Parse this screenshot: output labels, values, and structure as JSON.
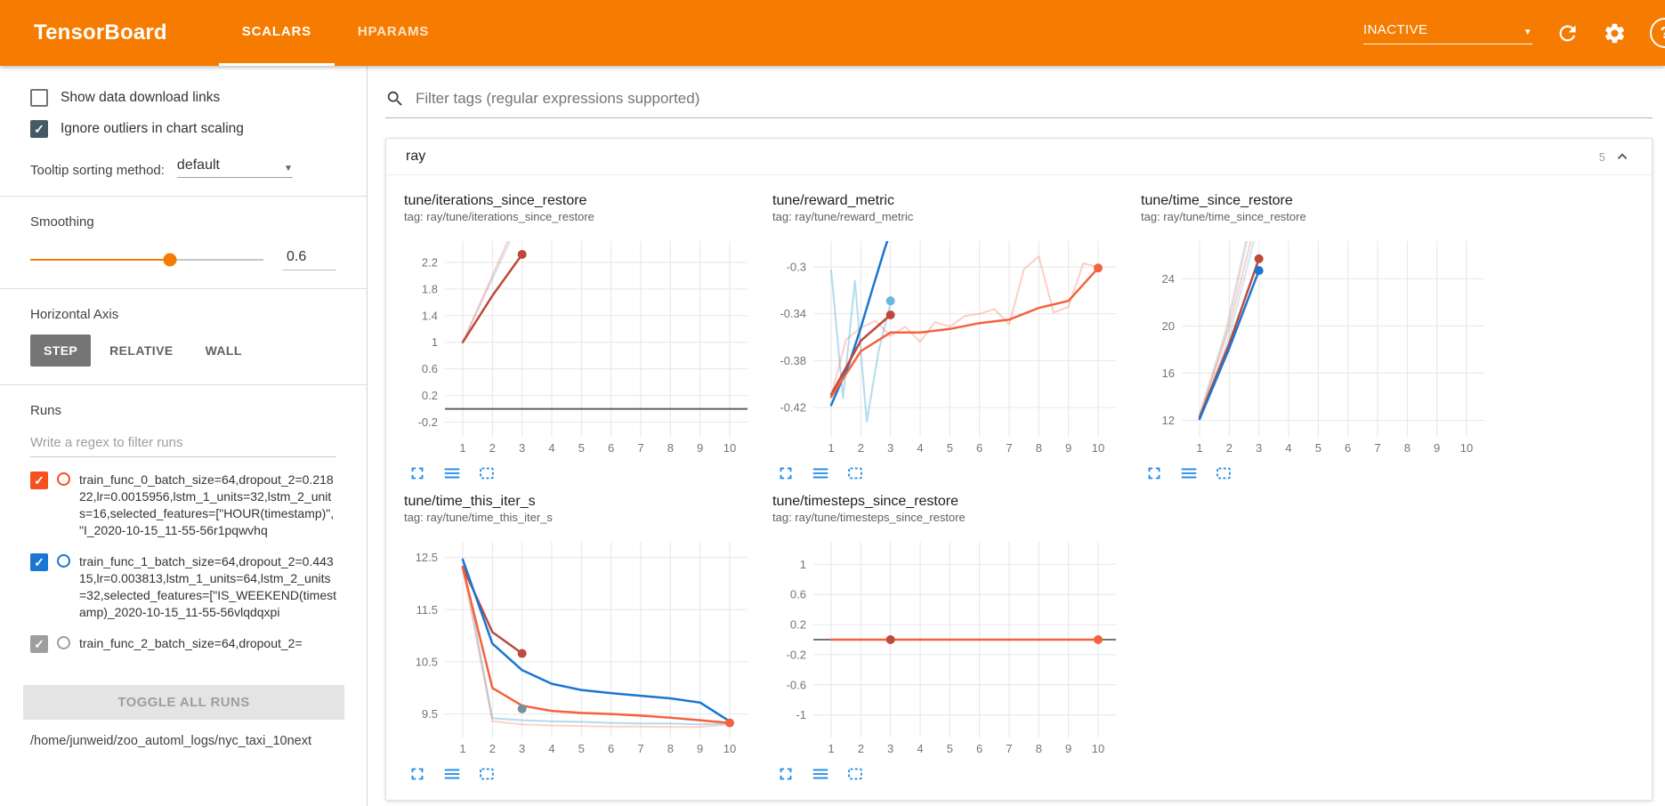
{
  "colors": {
    "header_bg": "#f57c00",
    "accent": "#f57c00",
    "icon_blue": "#1e88e5",
    "run0": "#f4511e",
    "run1": "#1976d2",
    "checkbox_checked": "#455a64"
  },
  "icons": {
    "search": "magnifier",
    "reload": "circular-arrow",
    "settings": "gear",
    "help": "question-mark-in-circle",
    "collapse": "chevron-up",
    "expand_chart": "fullscreen-corners",
    "run_data": "three-horizontal-lines",
    "fit_domain": "dashed-box"
  },
  "header": {
    "logo": "TensorBoard",
    "tabs": [
      {
        "label": "SCALARS",
        "active": true
      },
      {
        "label": "HPARAMS",
        "active": false
      }
    ],
    "status_dropdown": "INACTIVE"
  },
  "sidebar": {
    "show_data_download_links": {
      "label": "Show data download links",
      "checked": false
    },
    "ignore_outliers": {
      "label": "Ignore outliers in chart scaling",
      "checked": true
    },
    "tooltip_sorting": {
      "label": "Tooltip sorting method:",
      "value": "default"
    },
    "smoothing": {
      "label": "Smoothing",
      "value": "0.6"
    },
    "horizontal_axis": {
      "label": "Horizontal Axis",
      "options": [
        "STEP",
        "RELATIVE",
        "WALL"
      ],
      "selected": "STEP"
    },
    "runs": {
      "label": "Runs",
      "filter_placeholder": "Write a regex to filter runs",
      "items": [
        {
          "name": "train_func_0_batch_size=64,dropout_2=0.21822,lr=0.0015956,lstm_1_units=32,lstm_2_units=16,selected_features=[\"HOUR(timestamp)\", \"I_2020-10-15_11-55-56r1pqwvhq",
          "checked": true,
          "color": "#f4511e"
        },
        {
          "name": "train_func_1_batch_size=64,dropout_2=0.44315,lr=0.003813,lstm_1_units=64,lstm_2_units=32,selected_features=[\"IS_WEEKEND(timestamp)_2020-10-15_11-55-56vlqdqxpi",
          "checked": true,
          "color": "#1976d2"
        },
        {
          "name": "train_func_2_batch_size=64,dropout_2=",
          "checked": true,
          "color": "#9e9e9e"
        }
      ],
      "toggle_all_label": "TOGGLE ALL RUNS",
      "log_dir": "/home/junweid/zoo_automl_logs/nyc_taxi_10next"
    }
  },
  "main": {
    "filter_placeholder": "Filter tags (regular expressions supported)",
    "category": {
      "name": "ray",
      "count": "5"
    }
  },
  "chart_data": [
    {
      "type": "line",
      "title": "tune/iterations_since_restore",
      "tag": "tag: ray/tune/iterations_since_restore",
      "xlim": [
        0.4,
        10.6
      ],
      "ylim": [
        -0.42,
        2.52
      ],
      "xticks": [
        1,
        2,
        3,
        4,
        5,
        6,
        7,
        8,
        9,
        10
      ],
      "yticks": [
        -0.2,
        0.2,
        0.6,
        1,
        1.4,
        1.8,
        2.2
      ],
      "series": [
        {
          "name": "train_func_1 (raw)",
          "color": "#1976d2",
          "opacity": 0.18,
          "width": 2,
          "points": [
            [
              1,
              1
            ],
            [
              2,
              1.95
            ],
            [
              3,
              2.9
            ]
          ]
        },
        {
          "name": "train_func_0 (raw)",
          "color": "#f4623c",
          "opacity": 0.3,
          "width": 2,
          "points": [
            [
              1,
              1
            ],
            [
              2,
              2
            ],
            [
              3,
              3
            ]
          ]
        },
        {
          "name": "train_func_0 (smoothed)",
          "color": "#bd4a3a",
          "opacity": 1,
          "width": 2.5,
          "points": [
            [
              1,
              1
            ],
            [
              2,
              1.7
            ],
            [
              3,
              2.32
            ]
          ],
          "end_dot": true
        },
        {
          "name": "flat run at 0",
          "color": "#616161",
          "opacity": 1,
          "width": 2,
          "points": [
            [
              0.4,
              0
            ],
            [
              10.6,
              0
            ]
          ]
        }
      ]
    },
    {
      "type": "line",
      "title": "tune/reward_metric",
      "tag": "tag: ray/tune/reward_metric",
      "xlim": [
        0.4,
        10.6
      ],
      "ylim": [
        -0.445,
        -0.278
      ],
      "xticks": [
        1,
        2,
        3,
        4,
        5,
        6,
        7,
        8,
        9,
        10
      ],
      "yticks": [
        -0.42,
        -0.38,
        -0.34,
        -0.3
      ],
      "series": [
        {
          "name": "train_func_1 (raw)",
          "color": "#6ab7e0",
          "opacity": 0.5,
          "width": 2,
          "points": [
            [
              1,
              -0.303
            ],
            [
              1.4,
              -0.412
            ],
            [
              1.8,
              -0.312
            ],
            [
              2.2,
              -0.432
            ],
            [
              2.6,
              -0.372
            ],
            [
              3,
              -0.331
            ]
          ]
        },
        {
          "name": "orange run (raw)",
          "color": "#f4623c",
          "opacity": 0.3,
          "width": 2,
          "points": [
            [
              1,
              -0.41
            ],
            [
              1.5,
              -0.362
            ],
            [
              2,
              -0.352
            ],
            [
              2.5,
              -0.346
            ],
            [
              3,
              -0.359
            ],
            [
              3.5,
              -0.351
            ],
            [
              4,
              -0.364
            ],
            [
              4.5,
              -0.347
            ],
            [
              5,
              -0.351
            ],
            [
              5.5,
              -0.342
            ],
            [
              6,
              -0.34
            ],
            [
              6.5,
              -0.336
            ],
            [
              7,
              -0.349
            ],
            [
              7.5,
              -0.302
            ],
            [
              8,
              -0.291
            ],
            [
              8.5,
              -0.339
            ],
            [
              9,
              -0.334
            ],
            [
              9.5,
              -0.297
            ],
            [
              10,
              -0.3
            ]
          ]
        },
        {
          "name": "train_func_1 (smoothed)",
          "color": "#1976d2",
          "opacity": 1,
          "width": 2.5,
          "points": [
            [
              1,
              -0.418
            ],
            [
              1.6,
              -0.383
            ],
            [
              2,
              -0.352
            ],
            [
              2.4,
              -0.318
            ],
            [
              2.8,
              -0.285
            ],
            [
              3,
              -0.27
            ]
          ]
        },
        {
          "name": "train_func_0 (smoothed)",
          "color": "#bd4a3a",
          "opacity": 1,
          "width": 2.5,
          "points": [
            [
              1,
              -0.409
            ],
            [
              2,
              -0.363
            ],
            [
              3,
              -0.341
            ]
          ],
          "end_dot": true
        },
        {
          "name": "orange run (smoothed)",
          "color": "#f4623c",
          "opacity": 1,
          "width": 2.5,
          "points": [
            [
              1,
              -0.411
            ],
            [
              2,
              -0.372
            ],
            [
              3,
              -0.356
            ],
            [
              4,
              -0.356
            ],
            [
              5,
              -0.353
            ],
            [
              6,
              -0.348
            ],
            [
              7,
              -0.345
            ],
            [
              8,
              -0.335
            ],
            [
              9,
              -0.329
            ],
            [
              10,
              -0.301
            ]
          ],
          "end_dot": true
        }
      ],
      "dots": [
        {
          "x": 3,
          "y": -0.329,
          "color": "#6ab7e0"
        }
      ]
    },
    {
      "type": "line",
      "title": "tune/time_since_restore",
      "tag": "tag: ray/tune/time_since_restore",
      "xlim": [
        0.4,
        10.6
      ],
      "ylim": [
        10.6,
        27.2
      ],
      "xticks": [
        1,
        2,
        3,
        4,
        5,
        6,
        7,
        8,
        9,
        10
      ],
      "yticks": [
        12,
        16,
        20,
        24
      ],
      "series": [
        {
          "name": "grey run (raw)",
          "color": "#9e9e9e",
          "opacity": 0.35,
          "width": 3,
          "points": [
            [
              1,
              12.4
            ],
            [
              1.9,
              19.6
            ],
            [
              2.6,
              27.4
            ]
          ]
        },
        {
          "name": "orange run (raw)",
          "color": "#f4623c",
          "opacity": 0.3,
          "width": 2,
          "points": [
            [
              1,
              12.3
            ],
            [
              2,
              19.9
            ],
            [
              2.75,
              27.4
            ]
          ]
        },
        {
          "name": "blue run (raw)",
          "color": "#1976d2",
          "opacity": 0.2,
          "width": 2,
          "points": [
            [
              1,
              12.1
            ],
            [
              2,
              19.1
            ],
            [
              2.85,
              27.4
            ]
          ]
        },
        {
          "name": "train_func_0 (smoothed)",
          "color": "#bd4a3a",
          "opacity": 1,
          "width": 2.5,
          "points": [
            [
              1,
              12.25
            ],
            [
              2,
              18.5
            ],
            [
              3,
              25.7
            ]
          ],
          "end_dot": true
        },
        {
          "name": "train_func_1 (smoothed)",
          "color": "#1976d2",
          "opacity": 1,
          "width": 2.5,
          "points": [
            [
              1,
              12.1
            ],
            [
              2,
              18.1
            ],
            [
              3,
              24.7
            ]
          ],
          "end_dot": true
        }
      ]
    },
    {
      "type": "line",
      "title": "tune/time_this_iter_s",
      "tag": "tag: ray/tune/time_this_iter_s",
      "xlim": [
        0.4,
        10.6
      ],
      "ylim": [
        9.05,
        12.8
      ],
      "xticks": [
        1,
        2,
        3,
        4,
        5,
        6,
        7,
        8,
        9,
        10
      ],
      "yticks": [
        9.5,
        10.5,
        11.5,
        12.5
      ],
      "series": [
        {
          "name": "light blue run (raw)",
          "color": "#6ab7e0",
          "opacity": 0.5,
          "width": 2,
          "points": [
            [
              1,
              12.45
            ],
            [
              2,
              9.42
            ],
            [
              3,
              9.38
            ],
            [
              4,
              9.36
            ],
            [
              5,
              9.35
            ],
            [
              6,
              9.33
            ],
            [
              7,
              9.32
            ],
            [
              8,
              9.32
            ],
            [
              9,
              9.3
            ],
            [
              10,
              9.32
            ]
          ]
        },
        {
          "name": "orange run (raw)",
          "color": "#f4623c",
          "opacity": 0.28,
          "width": 2,
          "points": [
            [
              1,
              12.3
            ],
            [
              2,
              9.36
            ],
            [
              3,
              9.3
            ],
            [
              4,
              9.28
            ],
            [
              5,
              9.27
            ],
            [
              6,
              9.26
            ],
            [
              7,
              9.26
            ],
            [
              8,
              9.25
            ],
            [
              9,
              9.25
            ],
            [
              10,
              9.3
            ]
          ]
        },
        {
          "name": "train_func_0 (smoothed)",
          "color": "#bd4a3a",
          "opacity": 1,
          "width": 2.5,
          "points": [
            [
              1,
              12.32
            ],
            [
              2,
              11.07
            ],
            [
              3,
              10.66
            ]
          ],
          "end_dot": true
        },
        {
          "name": "train_func_1 (smoothed)",
          "color": "#1976d2",
          "opacity": 1,
          "width": 2.5,
          "points": [
            [
              1,
              12.46
            ],
            [
              2,
              10.85
            ],
            [
              3,
              10.34
            ],
            [
              4,
              10.08
            ],
            [
              5,
              9.96
            ],
            [
              6,
              9.9
            ],
            [
              7,
              9.85
            ],
            [
              8,
              9.8
            ],
            [
              9,
              9.72
            ],
            [
              10,
              9.36
            ]
          ]
        },
        {
          "name": "orange run (smoothed)",
          "color": "#f4623c",
          "opacity": 1,
          "width": 2.5,
          "points": [
            [
              1,
              12.3
            ],
            [
              2,
              10.0
            ],
            [
              3,
              9.66
            ],
            [
              4,
              9.56
            ],
            [
              5,
              9.52
            ],
            [
              6,
              9.5
            ],
            [
              7,
              9.47
            ],
            [
              8,
              9.43
            ],
            [
              9,
              9.38
            ],
            [
              10,
              9.33
            ]
          ],
          "end_dot": true
        }
      ],
      "dots": [
        {
          "x": 3,
          "y": 9.6,
          "color": "#78909c"
        }
      ]
    },
    {
      "type": "line",
      "title": "tune/timesteps_since_restore",
      "tag": "tag: ray/tune/timesteps_since_restore",
      "xlim": [
        0.4,
        10.6
      ],
      "ylim": [
        -1.3,
        1.3
      ],
      "xticks": [
        1,
        2,
        3,
        4,
        5,
        6,
        7,
        8,
        9,
        10
      ],
      "yticks": [
        -1,
        -0.6,
        -0.2,
        0.2,
        0.6,
        1
      ],
      "series": [
        {
          "name": "grey run",
          "color": "#757575",
          "opacity": 1,
          "width": 2,
          "points": [
            [
              0.4,
              0
            ],
            [
              10.6,
              0
            ]
          ]
        },
        {
          "name": "orange run (smoothed)",
          "color": "#f4623c",
          "opacity": 1,
          "width": 2.5,
          "points": [
            [
              1,
              0
            ],
            [
              10,
              0
            ]
          ],
          "end_dot": true
        }
      ],
      "dots": [
        {
          "x": 3,
          "y": 0,
          "color": "#bd4a3a"
        }
      ]
    }
  ]
}
